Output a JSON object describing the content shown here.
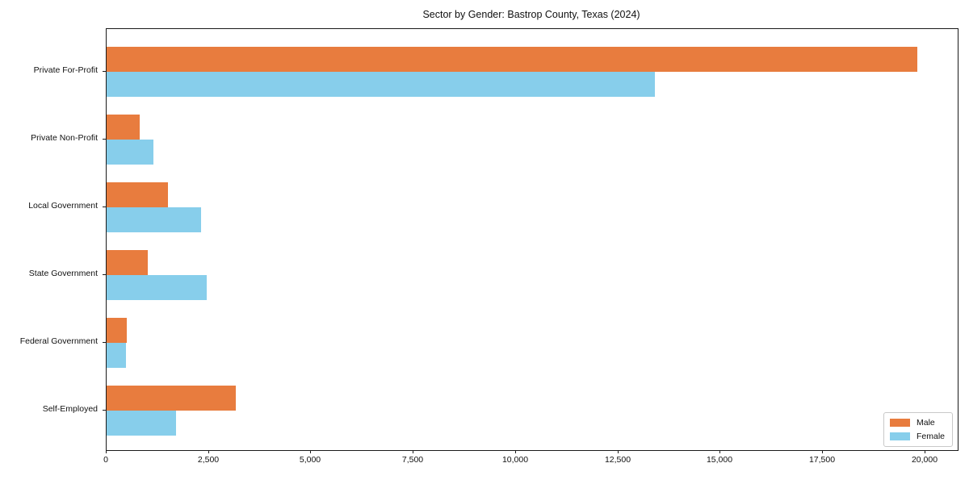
{
  "chart_data": {
    "type": "bar",
    "orientation": "horizontal",
    "title": "Sector by Gender: Bastrop County, Texas (2024)",
    "categories": [
      "Private For-Profit",
      "Private Non-Profit",
      "Local Government",
      "State Government",
      "Federal Government",
      "Self-Employed"
    ],
    "series": [
      {
        "name": "Male",
        "color": "#e87c3e",
        "values": [
          19800,
          800,
          1500,
          1000,
          500,
          3150
        ]
      },
      {
        "name": "Female",
        "color": "#87ceeb",
        "values": [
          13400,
          1150,
          2300,
          2450,
          470,
          1700
        ]
      }
    ],
    "xlabel": "",
    "ylabel": "",
    "xlim": [
      0,
      20790
    ],
    "xticks": [
      0,
      2500,
      5000,
      7500,
      10000,
      12500,
      15000,
      17500,
      20000
    ],
    "xtick_labels": [
      "0",
      "2,500",
      "5,000",
      "7,500",
      "10,000",
      "12,500",
      "15,000",
      "17,500",
      "20,000"
    ],
    "grid": false,
    "legend_position": "lower right"
  }
}
